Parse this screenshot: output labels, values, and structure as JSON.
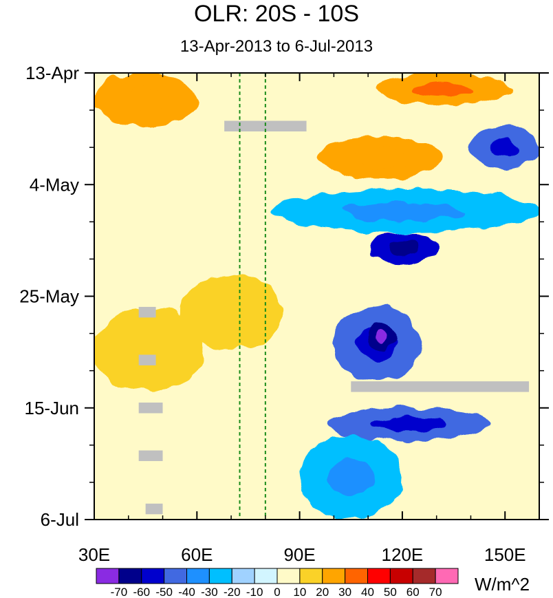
{
  "chart_data": {
    "type": "heatmap",
    "title": "OLR: 20S - 10S",
    "subtitle": "13-Apr-2013 to 6-Jul-2013",
    "x_axis": {
      "range": [
        30,
        160
      ],
      "ticks": [
        30,
        60,
        90,
        120,
        150
      ],
      "tick_labels": [
        "30E",
        "60E",
        "90E",
        "120E",
        "150E"
      ]
    },
    "y_axis": {
      "range_days": [
        0,
        84
      ],
      "ticks": [
        0,
        21,
        42,
        63,
        84
      ],
      "tick_labels": [
        "13-Apr",
        "4-May",
        "25-May",
        "15-Jun",
        "6-Jul"
      ]
    },
    "reference_lines_lon": [
      72.5,
      80
    ],
    "colorbar": {
      "units": "W/m^2",
      "levels": [
        -70,
        -60,
        -50,
        -40,
        -30,
        -20,
        -10,
        0,
        10,
        20,
        30,
        40,
        50,
        60,
        70
      ],
      "labels": [
        "-70",
        "-60",
        "-50",
        "-40",
        "-30",
        "-20",
        "-10",
        "0",
        "10",
        "20",
        "30",
        "40",
        "50",
        "60",
        "70"
      ],
      "colors": [
        "#8a2be2",
        "#00008b",
        "#0000cd",
        "#4169e1",
        "#1e90ff",
        "#00bfff",
        "#a0d2ff",
        "#d2f5ff",
        "#fffac8",
        "#fad228",
        "#ffa500",
        "#ff6400",
        "#ff0000",
        "#c80000",
        "#a52a2a",
        "#ff69b4"
      ]
    },
    "anomaly_features": [
      {
        "kind": "positive",
        "lon": [
          30,
          60
        ],
        "day": [
          0,
          10
        ],
        "value": 20
      },
      {
        "kind": "positive",
        "lon": [
          112,
          152
        ],
        "day": [
          0,
          6
        ],
        "value": 25
      },
      {
        "kind": "positive",
        "lon": [
          95,
          132
        ],
        "day": [
          12,
          20
        ],
        "value": 20
      },
      {
        "kind": "positive",
        "lon": [
          30,
          62
        ],
        "day": [
          44,
          60
        ],
        "value": 15
      },
      {
        "kind": "positive",
        "lon": [
          55,
          85
        ],
        "day": [
          38,
          52
        ],
        "value": 12
      },
      {
        "kind": "negative",
        "lon": [
          82,
          160
        ],
        "day": [
          22,
          30
        ],
        "value": -30
      },
      {
        "kind": "negative",
        "lon": [
          110,
          130
        ],
        "day": [
          30,
          36
        ],
        "value": -55
      },
      {
        "kind": "negative",
        "lon": [
          100,
          125
        ],
        "day": [
          44,
          58
        ],
        "value": -50
      },
      {
        "kind": "negative",
        "lon": [
          110,
          118
        ],
        "day": [
          47,
          52
        ],
        "value": -70
      },
      {
        "kind": "negative",
        "lon": [
          98,
          146
        ],
        "day": [
          63,
          69
        ],
        "value": -50
      },
      {
        "kind": "negative",
        "lon": [
          90,
          120
        ],
        "day": [
          68,
          84
        ],
        "value": -25
      },
      {
        "kind": "negative",
        "lon": [
          140,
          160
        ],
        "day": [
          10,
          18
        ],
        "value": -45
      }
    ],
    "missing_data": [
      {
        "lon": [
          68,
          92
        ],
        "day": [
          9,
          11
        ]
      },
      {
        "lon": [
          105,
          157
        ],
        "day": [
          58,
          60
        ]
      },
      {
        "lon": [
          43,
          48
        ],
        "day": [
          44,
          46
        ]
      },
      {
        "lon": [
          43,
          48
        ],
        "day": [
          53,
          55
        ]
      },
      {
        "lon": [
          43,
          50
        ],
        "day": [
          62,
          64
        ]
      },
      {
        "lon": [
          43,
          50
        ],
        "day": [
          71,
          73
        ]
      },
      {
        "lon": [
          45,
          50
        ],
        "day": [
          81,
          83
        ]
      }
    ]
  }
}
